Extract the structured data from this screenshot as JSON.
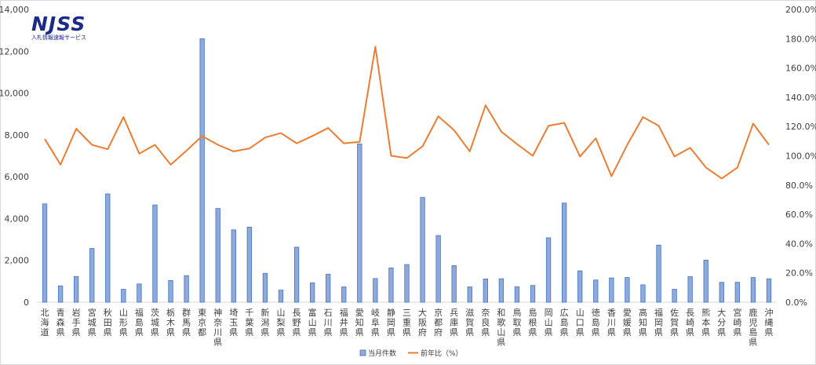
{
  "logo": {
    "mark": "NJSS",
    "subtitle": "入札情報速報サービス"
  },
  "colors": {
    "bar_fill": "#8eaadb",
    "bar_stroke": "#4472c4",
    "line": "#ed7d31",
    "axis": "#d9d9d9",
    "logo": "#1c2a8a"
  },
  "chart_data": {
    "type": "bar",
    "categories": [
      "北海道",
      "青森県",
      "岩手県",
      "宮城県",
      "秋田県",
      "山形県",
      "福島県",
      "茨城県",
      "栃木県",
      "群馬県",
      "東京都",
      "神奈川県",
      "埼玉県",
      "千葉県",
      "新潟県",
      "山梨県",
      "長野県",
      "富山県",
      "石川県",
      "福井県",
      "愛知県",
      "岐阜県",
      "静岡県",
      "三重県",
      "大阪府",
      "京都府",
      "兵庫県",
      "滋賀県",
      "奈良県",
      "和歌山県",
      "鳥取県",
      "島根県",
      "岡山県",
      "広島県",
      "山口県",
      "徳島県",
      "香川県",
      "愛媛県",
      "高知県",
      "福岡県",
      "佐賀県",
      "長崎県",
      "熊本県",
      "大分県",
      "宮崎県",
      "鹿児島県",
      "沖縄県"
    ],
    "series": [
      {
        "name": "当月件数",
        "type": "bar",
        "axis": "left",
        "values": [
          4700,
          780,
          1230,
          2570,
          5180,
          620,
          870,
          4650,
          1040,
          1270,
          12600,
          4480,
          3460,
          3590,
          1380,
          580,
          2630,
          930,
          1340,
          730,
          7570,
          1130,
          1640,
          1800,
          5010,
          3190,
          1750,
          730,
          1110,
          1120,
          740,
          800,
          3080,
          4740,
          1500,
          1060,
          1160,
          1180,
          830,
          2730,
          620,
          1220,
          2010,
          950,
          950,
          1180,
          1120
        ]
      },
      {
        "name": "前年比（%）",
        "type": "line",
        "axis": "right",
        "values": [
          111.5,
          94.0,
          118.5,
          107.5,
          104.5,
          126.5,
          101.5,
          107.5,
          94.0,
          103.5,
          113.5,
          107.5,
          103.0,
          105.0,
          112.5,
          115.5,
          108.5,
          113.5,
          119.0,
          108.5,
          109.5,
          174.5,
          100.0,
          98.5,
          106.5,
          127.0,
          117.5,
          103.0,
          134.5,
          116.5,
          108.0,
          100.0,
          120.5,
          122.5,
          99.5,
          112.0,
          86.0,
          107.5,
          126.5,
          120.5,
          99.5,
          105.5,
          92.0,
          84.5,
          92.0,
          122.0,
          107.5
        ]
      }
    ],
    "y_left": {
      "min": 0,
      "max": 14000,
      "ticks": [
        "0",
        "2,000",
        "4,000",
        "6,000",
        "8,000",
        "10,000",
        "12,000",
        "14,000"
      ]
    },
    "y_right": {
      "min": 0,
      "max": 200,
      "ticks": [
        "0.0%",
        "20.0%",
        "40.0%",
        "60.0%",
        "80.0%",
        "100.0%",
        "120.0%",
        "140.0%",
        "160.0%",
        "180.0%",
        "200.0%"
      ]
    },
    "grid": false,
    "legend_position": "bottom",
    "legend": [
      "当月件数",
      "前年比（%）"
    ]
  }
}
